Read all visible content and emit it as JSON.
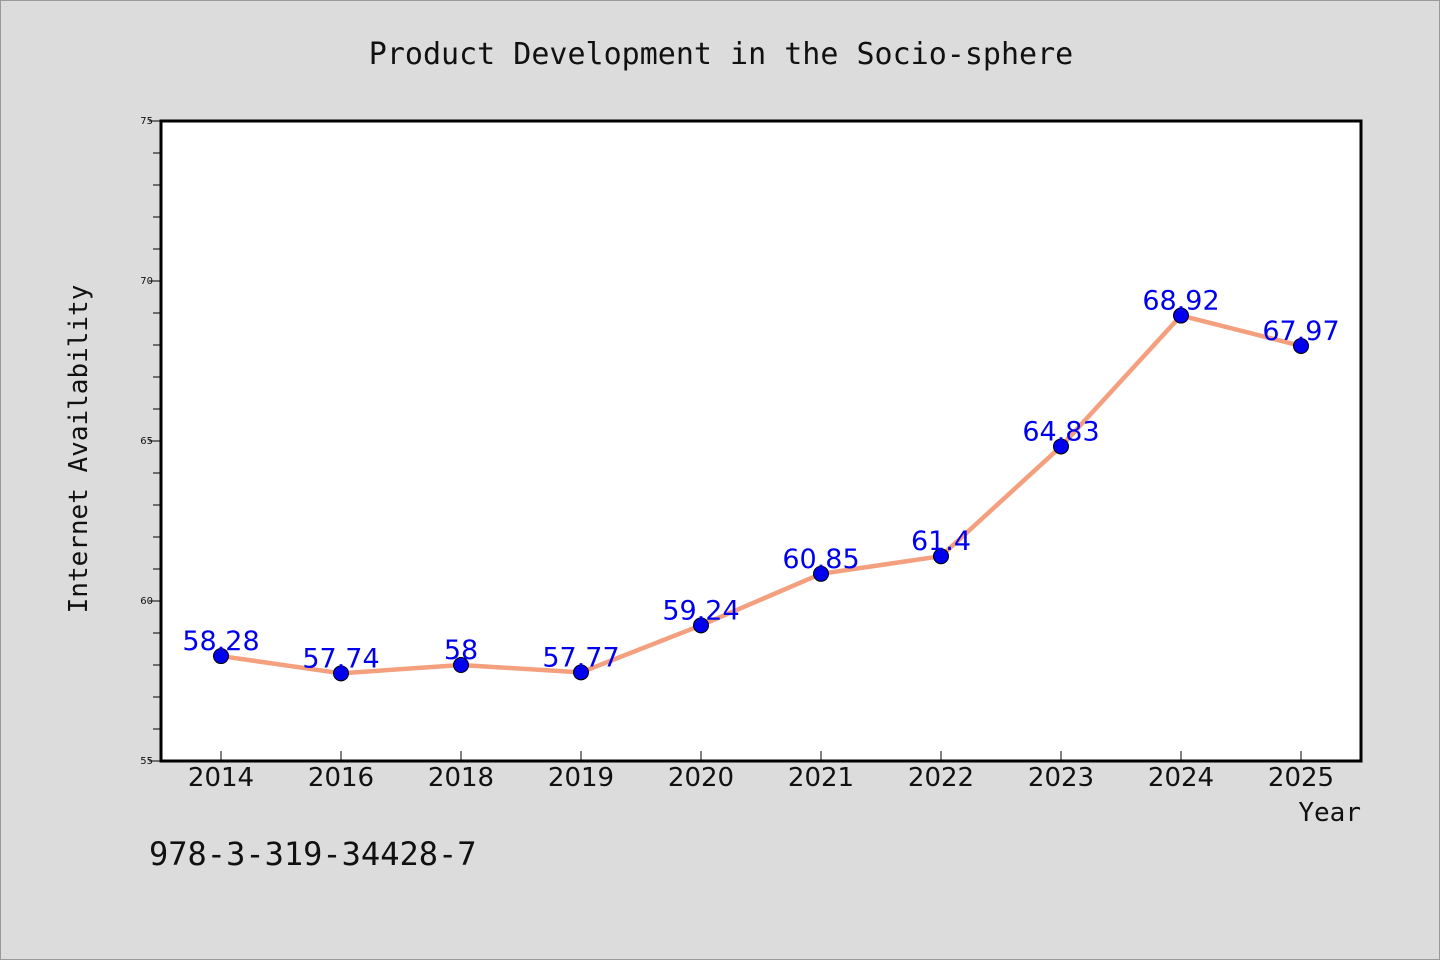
{
  "chart_data": {
    "type": "line",
    "title": "Product Development in the Socio-sphere",
    "xlabel": "Year",
    "ylabel": "Internet Availability",
    "categories": [
      "2014",
      "2016",
      "2018",
      "2019",
      "2020",
      "2021",
      "2022",
      "2023",
      "2024",
      "2025"
    ],
    "series": [
      {
        "values": [
          58.28,
          57.74,
          58,
          57.77,
          59.24,
          60.85,
          61.4,
          64.83,
          68.92,
          67.97
        ],
        "labels": [
          "58.28",
          "57.74",
          "58",
          "57.77",
          "59.24",
          "60.85",
          "61.4",
          "64.83",
          "68.92",
          "67.97"
        ],
        "line_color": "#f4a07e",
        "marker_color": "#0000ee",
        "label_color": "#0000ee"
      }
    ],
    "ylim": [
      55,
      75
    ],
    "y_ticks": [
      "55",
      "60",
      "65",
      "70",
      "75"
    ],
    "grid": false,
    "legend": "none"
  },
  "footer": {
    "text": "978-3-319-34428-7"
  },
  "colors": {
    "figure_background": "#dcdcdc",
    "plot_background": "#ffffff"
  }
}
